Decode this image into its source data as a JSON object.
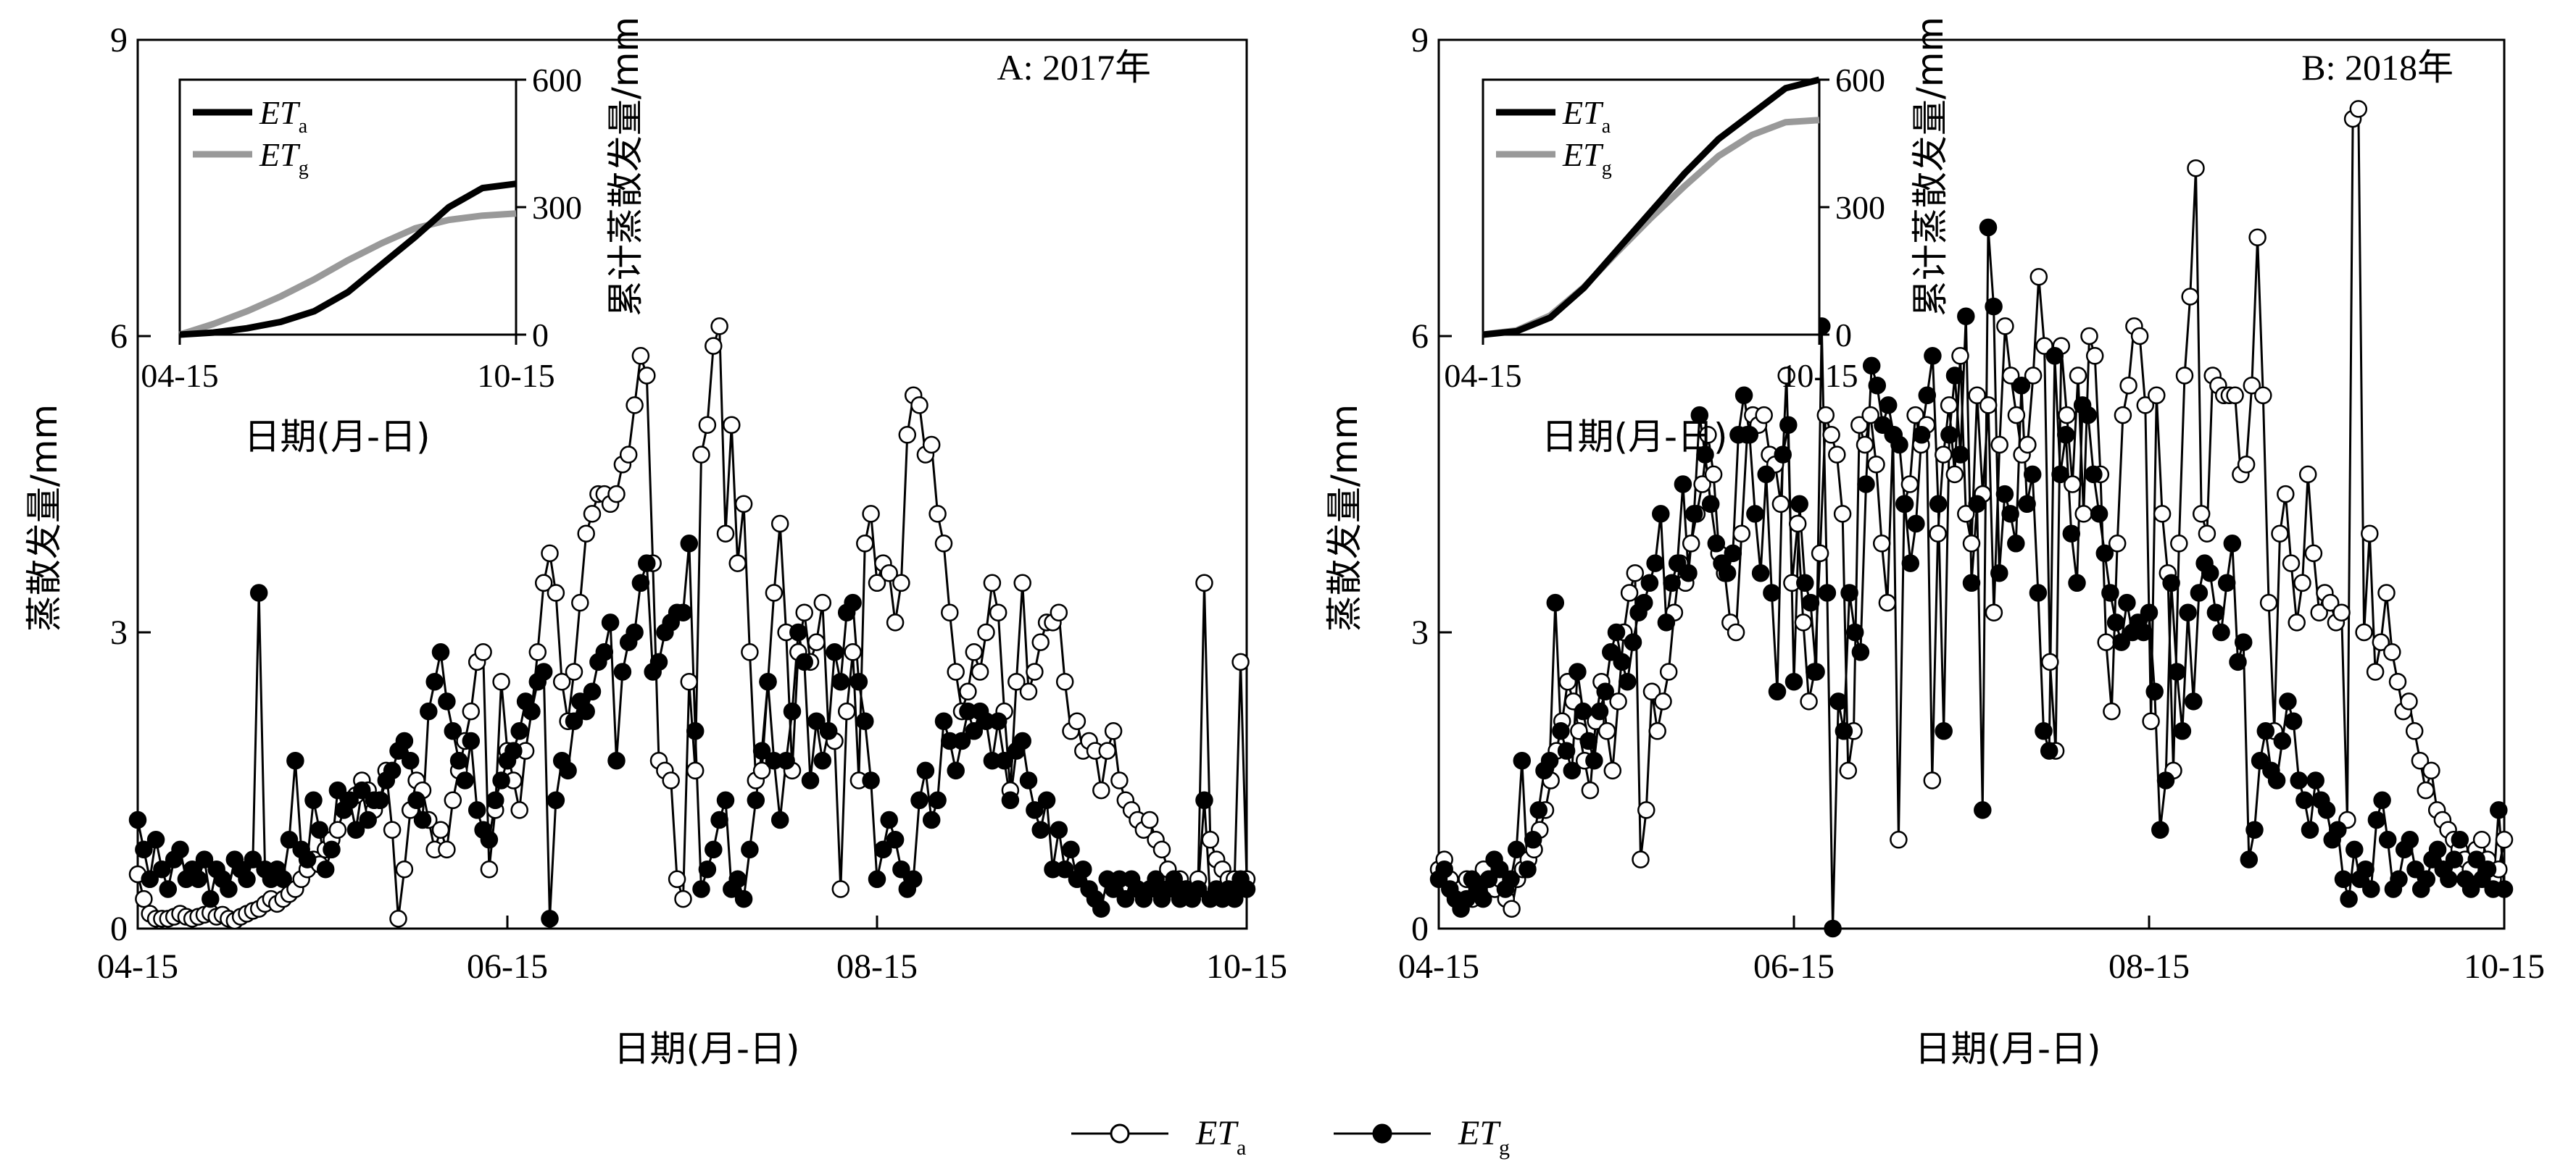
{
  "chart_data": [
    {
      "type": "line",
      "panel_label": "A: 2017年",
      "xlabel": "日期(月-日)",
      "ylabel": "蒸散发量/mm",
      "xticks": [
        "04-15",
        "06-15",
        "08-15",
        "10-15"
      ],
      "xlim": [
        "04-15",
        "10-15"
      ],
      "yticks": [
        "0",
        "3",
        "6",
        "9"
      ],
      "ylim": [
        0,
        9
      ],
      "series": [
        {
          "name": "ETa",
          "marker": "open-circle",
          "values": [
            0.55,
            0.3,
            0.15,
            0.1,
            0.1,
            0.1,
            0.12,
            0.15,
            0.12,
            0.1,
            0.12,
            0.14,
            0.16,
            0.12,
            0.14,
            0.1,
            0.08,
            0.12,
            0.15,
            0.18,
            0.2,
            0.25,
            0.3,
            0.25,
            0.3,
            0.35,
            0.4,
            0.5,
            0.6,
            0.7,
            0.65,
            0.8,
            0.9,
            1.0,
            1.2,
            1.3,
            1.35,
            1.5,
            1.4,
            1.2,
            1.3,
            1.6,
            1.0,
            0.1,
            0.6,
            1.2,
            1.5,
            1.4,
            1.1,
            0.8,
            1.0,
            0.8,
            1.3,
            1.6,
            1.9,
            2.2,
            2.7,
            2.8,
            0.6,
            1.2,
            2.5,
            1.8,
            1.5,
            1.2,
            1.8,
            2.2,
            2.8,
            3.5,
            3.8,
            3.4,
            2.5,
            2.1,
            2.6,
            3.3,
            4.0,
            4.2,
            4.4,
            4.4,
            4.3,
            4.4,
            4.7,
            4.8,
            5.3,
            5.8,
            5.6,
            3.7,
            1.7,
            1.6,
            1.5,
            0.5,
            0.3,
            2.5,
            1.6,
            4.8,
            5.1,
            5.9,
            6.1,
            4.0,
            5.1,
            3.7,
            4.3,
            2.8,
            1.5,
            1.6,
            2.5,
            3.4,
            4.1,
            3.0,
            1.6,
            2.8,
            3.2,
            2.7,
            2.9,
            3.3,
            2.0,
            1.9,
            0.4,
            2.2,
            2.8,
            1.5,
            3.9,
            4.2,
            3.5,
            3.7,
            3.6,
            3.1,
            3.5,
            5.0,
            5.4,
            5.3,
            4.8,
            4.9,
            4.2,
            3.9,
            3.2,
            2.6,
            2.2,
            2.4,
            2.8,
            2.6,
            3.0,
            3.5,
            3.2,
            2.2,
            1.4,
            2.5,
            3.5,
            2.4,
            2.6,
            2.9,
            3.1,
            3.1,
            3.2,
            2.5,
            2.0,
            2.1,
            1.8,
            1.9,
            1.8,
            1.4,
            1.8,
            2.0,
            1.5,
            1.3,
            1.2,
            1.1,
            1.0,
            1.1,
            0.9,
            0.8,
            0.6,
            0.5,
            0.5,
            0.4,
            0.4,
            0.5,
            3.5,
            0.9,
            0.7,
            0.6,
            0.5,
            0.5,
            2.7,
            0.5
          ]
        },
        {
          "name": "ETg",
          "marker": "filled-circle",
          "values": [
            1.1,
            0.8,
            0.5,
            0.9,
            0.6,
            0.4,
            0.7,
            0.8,
            0.5,
            0.6,
            0.5,
            0.7,
            0.3,
            0.6,
            0.5,
            0.4,
            0.7,
            0.6,
            0.5,
            0.7,
            3.4,
            0.6,
            0.5,
            0.6,
            0.5,
            0.9,
            1.7,
            0.8,
            0.7,
            1.3,
            1.0,
            0.6,
            0.8,
            1.4,
            1.2,
            1.3,
            1.0,
            1.4,
            1.1,
            1.3,
            1.3,
            1.5,
            1.6,
            1.8,
            1.9,
            1.7,
            1.3,
            1.1,
            2.2,
            2.5,
            2.8,
            2.3,
            2.0,
            1.7,
            1.5,
            1.9,
            1.2,
            1.0,
            0.9,
            1.3,
            1.5,
            1.7,
            1.8,
            2.0,
            2.3,
            2.2,
            2.5,
            2.6,
            0.1,
            1.3,
            1.7,
            1.6,
            2.1,
            2.3,
            2.2,
            2.4,
            2.7,
            2.8,
            3.1,
            1.7,
            2.6,
            2.9,
            3.0,
            3.5,
            3.7,
            2.6,
            2.7,
            3.0,
            3.1,
            3.2,
            3.2,
            3.9,
            2.0,
            0.4,
            0.6,
            0.8,
            1.1,
            1.3,
            0.4,
            0.5,
            0.3,
            0.8,
            1.3,
            1.8,
            2.5,
            1.7,
            1.1,
            1.7,
            2.2,
            3.0,
            2.7,
            1.5,
            2.1,
            1.7,
            2.0,
            2.8,
            2.5,
            3.2,
            3.3,
            2.5,
            2.1,
            1.5,
            0.5,
            0.8,
            1.1,
            0.9,
            0.6,
            0.4,
            0.5,
            1.3,
            1.6,
            1.1,
            1.3,
            2.1,
            1.9,
            1.6,
            1.9,
            2.2,
            2.0,
            2.2,
            2.1,
            1.7,
            2.1,
            1.7,
            1.3,
            1.8,
            1.9,
            1.5,
            1.2,
            1.0,
            1.3,
            0.6,
            1.0,
            0.6,
            0.8,
            0.5,
            0.6,
            0.4,
            0.3,
            0.2,
            0.5,
            0.4,
            0.5,
            0.3,
            0.5,
            0.4,
            0.3,
            0.4,
            0.5,
            0.3,
            0.4,
            0.5,
            0.3,
            0.4,
            0.3,
            0.4,
            1.3,
            0.3,
            0.4,
            0.3,
            0.4,
            0.3,
            0.5,
            0.4
          ]
        }
      ],
      "inset": {
        "xlabel": "日期(月-日)",
        "ylabel": "累计蒸散发量/mm",
        "xticks": [
          "04-15",
          "10-15"
        ],
        "yticks": [
          "0",
          "300",
          "600"
        ],
        "ylim": [
          0,
          600
        ],
        "legend": [
          {
            "base": "ET",
            "sub": "a"
          },
          {
            "base": "ET",
            "sub": "g"
          }
        ],
        "series": [
          {
            "name": "ETa",
            "x": [
              0,
              0.1,
              0.2,
              0.3,
              0.4,
              0.5,
              0.6,
              0.7,
              0.8,
              0.9,
              1.0
            ],
            "values": [
              0,
              5,
              15,
              30,
              55,
              100,
              165,
              230,
              300,
              345,
              355
            ]
          },
          {
            "name": "ETg",
            "x": [
              0,
              0.1,
              0.2,
              0.3,
              0.4,
              0.5,
              0.6,
              0.7,
              0.8,
              0.9,
              1.0
            ],
            "values": [
              0,
              25,
              55,
              90,
              130,
              175,
              215,
              250,
              270,
              280,
              285
            ]
          }
        ]
      }
    },
    {
      "type": "line",
      "panel_label": "B: 2018年",
      "xlabel": "日期(月-日)",
      "ylabel": "蒸散发量/mm",
      "xticks": [
        "04-15",
        "06-15",
        "08-15",
        "10-15"
      ],
      "xlim": [
        "04-15",
        "10-15"
      ],
      "yticks": [
        "0",
        "3",
        "6",
        "9"
      ],
      "ylim": [
        0,
        9
      ],
      "series": [
        {
          "name": "ETa",
          "marker": "open-circle",
          "values": [
            0.6,
            0.7,
            0.5,
            0.3,
            0.4,
            0.5,
            0.3,
            0.4,
            0.6,
            0.5,
            0.4,
            0.5,
            0.3,
            0.2,
            0.5,
            0.6,
            0.7,
            0.8,
            1.0,
            1.2,
            1.5,
            1.8,
            2.1,
            2.5,
            2.3,
            2.0,
            1.7,
            1.4,
            2.1,
            2.5,
            2.0,
            1.6,
            2.3,
            3.0,
            3.4,
            3.6,
            0.7,
            1.2,
            2.4,
            2.0,
            2.3,
            2.6,
            3.2,
            3.7,
            3.5,
            3.9,
            4.2,
            4.5,
            5.0,
            4.6,
            3.8,
            3.6,
            3.1,
            3.0,
            4.0,
            5.0,
            5.2,
            5.1,
            5.2,
            4.8,
            4.7,
            4.3,
            5.6,
            3.5,
            4.1,
            3.1,
            2.3,
            2.6,
            3.8,
            5.2,
            5.0,
            4.8,
            4.2,
            1.6,
            2.0,
            5.1,
            4.9,
            5.2,
            4.7,
            3.9,
            3.3,
            5.0,
            0.9,
            4.3,
            4.5,
            5.2,
            4.9,
            5.1,
            1.5,
            4.0,
            4.8,
            5.3,
            4.6,
            5.8,
            4.2,
            3.9,
            5.4,
            4.4,
            5.3,
            3.2,
            4.9,
            6.1,
            5.6,
            5.2,
            4.8,
            4.9,
            5.6,
            6.6,
            5.9,
            2.7,
            1.8,
            5.9,
            5.2,
            4.5,
            5.6,
            4.2,
            6.0,
            5.8,
            4.6,
            2.9,
            2.2,
            3.9,
            5.2,
            5.5,
            6.1,
            6.0,
            5.3,
            2.1,
            5.4,
            4.2,
            3.6,
            1.6,
            3.9,
            5.6,
            6.4,
            7.7,
            4.2,
            4.0,
            5.6,
            5.5,
            5.4,
            5.4,
            5.4,
            4.6,
            4.7,
            5.5,
            7.0,
            5.4,
            3.3,
            2.0,
            4.0,
            4.4,
            3.7,
            3.1,
            3.5,
            4.6,
            3.8,
            3.2,
            3.4,
            3.3,
            3.1,
            3.2,
            1.1,
            8.2,
            8.3,
            3.0,
            4.0,
            2.6,
            2.9,
            3.4,
            2.8,
            2.5,
            2.2,
            2.3,
            2.0,
            1.7,
            1.4,
            1.6,
            1.2,
            1.1,
            1.0,
            0.9,
            0.8,
            0.7,
            0.6,
            0.8,
            0.9,
            0.7,
            0.5,
            0.6,
            0.9
          ]
        },
        {
          "name": "ETg",
          "marker": "filled-circle",
          "values": [
            0.5,
            0.6,
            0.4,
            0.3,
            0.2,
            0.3,
            0.5,
            0.4,
            0.3,
            0.5,
            0.7,
            0.6,
            0.4,
            0.5,
            0.8,
            1.7,
            0.6,
            0.9,
            1.2,
            1.6,
            1.7,
            3.3,
            2.0,
            1.8,
            1.6,
            2.6,
            2.2,
            1.9,
            1.7,
            2.2,
            2.4,
            2.8,
            3.0,
            2.7,
            2.5,
            2.9,
            3.2,
            3.3,
            3.5,
            3.7,
            4.2,
            3.1,
            3.5,
            3.7,
            4.5,
            3.6,
            4.2,
            5.2,
            4.8,
            4.3,
            3.9,
            3.7,
            3.6,
            3.8,
            5.0,
            5.4,
            5.0,
            4.2,
            3.6,
            4.6,
            3.4,
            2.4,
            4.8,
            5.1,
            2.5,
            4.3,
            3.5,
            3.3,
            2.6,
            6.1,
            3.4,
            0.0,
            2.3,
            2.0,
            3.4,
            3.0,
            2.8,
            4.5,
            5.7,
            5.5,
            5.1,
            5.3,
            5.0,
            4.9,
            4.3,
            3.7,
            4.1,
            5.0,
            5.4,
            5.8,
            4.3,
            2.0,
            5.0,
            5.6,
            4.8,
            6.2,
            3.5,
            4.3,
            1.2,
            7.1,
            6.3,
            3.6,
            4.4,
            4.2,
            3.9,
            5.5,
            4.3,
            4.6,
            3.4,
            2.0,
            1.8,
            5.8,
            4.6,
            5.0,
            4.0,
            3.5,
            5.3,
            5.2,
            4.6,
            4.2,
            3.8,
            3.4,
            3.1,
            2.9,
            3.3,
            3.0,
            3.1,
            3.0,
            3.2,
            2.4,
            1.0,
            1.5,
            3.5,
            2.6,
            2.0,
            3.2,
            2.3,
            3.4,
            3.7,
            3.6,
            3.2,
            3.0,
            3.5,
            3.9,
            2.7,
            2.9,
            0.7,
            1.0,
            1.7,
            2.0,
            1.6,
            1.5,
            1.9,
            2.3,
            2.1,
            1.5,
            1.3,
            1.0,
            1.5,
            1.3,
            1.2,
            0.9,
            1.0,
            0.5,
            0.3,
            0.8,
            0.5,
            0.6,
            0.4,
            1.1,
            1.3,
            0.9,
            0.4,
            0.5,
            0.8,
            0.9,
            0.6,
            0.4,
            0.5,
            0.7,
            0.8,
            0.6,
            0.5,
            0.7,
            0.9,
            0.5,
            0.4,
            0.7,
            0.5,
            0.6,
            0.4,
            1.2,
            0.4
          ]
        }
      ],
      "inset": {
        "xlabel": "日期(月-日)",
        "ylabel": "累计蒸散发量/mm",
        "xticks": [
          "04-15",
          "10-15"
        ],
        "yticks": [
          "0",
          "300",
          "600"
        ],
        "ylim": [
          0,
          600
        ],
        "legend": [
          {
            "base": "ET",
            "sub": "a"
          },
          {
            "base": "ET",
            "sub": "g"
          }
        ],
        "series": [
          {
            "name": "ETa",
            "x": [
              0,
              0.1,
              0.2,
              0.3,
              0.4,
              0.5,
              0.6,
              0.7,
              0.8,
              0.9,
              1.0
            ],
            "values": [
              0,
              8,
              40,
              110,
              200,
              290,
              380,
              460,
              520,
              580,
              600
            ]
          },
          {
            "name": "ETg",
            "x": [
              0,
              0.1,
              0.2,
              0.3,
              0.4,
              0.5,
              0.6,
              0.7,
              0.8,
              0.9,
              1.0
            ],
            "values": [
              0,
              10,
              45,
              112,
              195,
              275,
              350,
              420,
              470,
              500,
              505
            ]
          }
        ]
      }
    }
  ],
  "legend": [
    {
      "base": "ET",
      "sub": "a",
      "marker": "open-circle"
    },
    {
      "base": "ET",
      "sub": "g",
      "marker": "filled-circle"
    }
  ],
  "colors": {
    "eta_inset": "#000000",
    "etg_inset": "#999999"
  }
}
